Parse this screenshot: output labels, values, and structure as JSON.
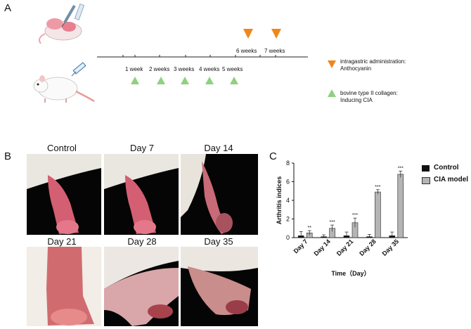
{
  "panelA": {
    "letter": "A",
    "week_labels": [
      "1 week",
      "2 weeks",
      "3 weeks",
      "4 weeks",
      "5 weeks",
      "6 weeks",
      "7 weeks"
    ],
    "legend": {
      "orange_line1": "intragastric administration:",
      "orange_line2": "Anthocyanin",
      "green_line1": "bovine type II collagen:",
      "green_line2": "Inducing CIA"
    },
    "colors": {
      "orange": "#f0861a",
      "green": "#8fd081"
    }
  },
  "panelB": {
    "letter": "B",
    "photo_titles": [
      "Control",
      "Day 7",
      "Day 14",
      "Day 21",
      "Day 28",
      "Day 35"
    ]
  },
  "panelC": {
    "letter": "C",
    "legend_control": "Control",
    "legend_cia": "CIA model"
  },
  "chart_data": {
    "type": "bar",
    "categories": [
      "Day 7",
      "Day 14",
      "Day 21",
      "Day 28",
      "Day 35"
    ],
    "series": [
      {
        "name": "Control",
        "values": [
          0.2,
          0.1,
          0.2,
          0.1,
          0.2
        ],
        "errors": [
          0.45,
          0.2,
          0.4,
          0.25,
          0.4
        ],
        "color": "#111111"
      },
      {
        "name": "CIA model",
        "values": [
          0.5,
          1.0,
          1.6,
          4.9,
          6.8
        ],
        "errors": [
          0.25,
          0.35,
          0.5,
          0.25,
          0.35
        ],
        "color": "#b5b5b5"
      }
    ],
    "significance": [
      "**",
      "***",
      "***",
      "***",
      "***"
    ],
    "ylabel": "Arthritis indices",
    "xlabel": "Time（Day）",
    "ylim": [
      0,
      8
    ],
    "yticks": [
      0,
      2,
      4,
      6,
      8
    ],
    "legend_position": "right",
    "grid": false
  }
}
